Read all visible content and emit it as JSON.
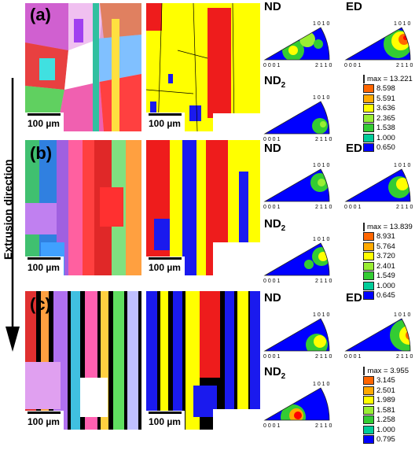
{
  "figure": {
    "arrow_label": "Extrusion direction",
    "panels": [
      {
        "label": "(a)",
        "scalebar": "100 µm",
        "ipf_titles": [
          "ND",
          "ED",
          "ND"
        ],
        "nd2_sub": "2",
        "legend": {
          "max_label": "max = 13.221",
          "levels": [
            "8.598",
            "5.591",
            "3.636",
            "2.365",
            "1.538",
            "1.000",
            "0.650"
          ]
        }
      },
      {
        "label": "(b)",
        "scalebar": "100 µm",
        "ipf_titles": [
          "ND",
          "ED",
          "ND"
        ],
        "nd2_sub": "2",
        "legend": {
          "max_label": "max = 13.839",
          "levels": [
            "8.931",
            "5.764",
            "3.720",
            "2.401",
            "1.549",
            "1.000",
            "0.645"
          ]
        }
      },
      {
        "label": "(c)",
        "scalebar": "100 µm",
        "ipf_titles": [
          "ND",
          "ED",
          "ND"
        ],
        "nd2_sub": "2",
        "legend": {
          "max_label": "max = 3.955",
          "levels": [
            "3.145",
            "2.501",
            "1.989",
            "1.581",
            "1.258",
            "1.000",
            "0.795"
          ]
        }
      }
    ],
    "triangle_labels": {
      "top": "1 0 1 0",
      "left": "0 0 0 1",
      "right": "2 1 1 0"
    },
    "legend_colors": [
      "#ff0000",
      "#ff6600",
      "#ffaa00",
      "#ffff00",
      "#99ee33",
      "#33cc33",
      "#00cc99",
      "#0000ff"
    ],
    "phase_colors": {
      "red": "#ee1c1c",
      "yellow": "#ffff00",
      "blue": "#1a1aee",
      "black": "#000000"
    }
  }
}
